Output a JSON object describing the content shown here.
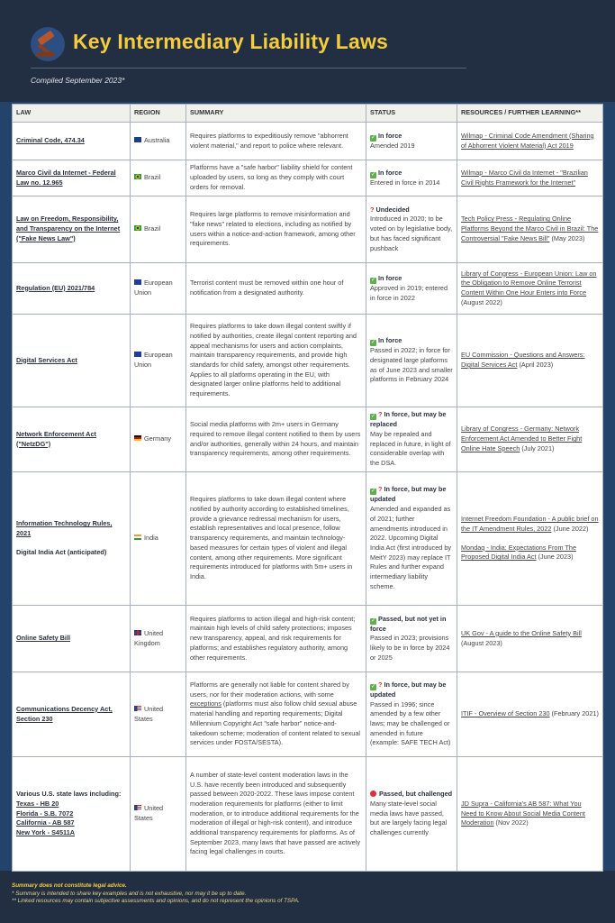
{
  "header": {
    "logo_icon": "gavel-icon",
    "title": "Key Intermediary Liability Laws",
    "subtitle": "Compiled September 2023*"
  },
  "colors": {
    "accent": "#f4cc3d",
    "background": "#222e41",
    "band": "#23436b"
  },
  "table": {
    "columns": [
      "LAW",
      "REGION",
      "SUMMARY",
      "STATUS",
      "RESOURCES / FURTHER LEARNING**"
    ],
    "rows": [
      {
        "law": [
          {
            "text": "Criminal Code, 474.34",
            "link": true
          }
        ],
        "region": {
          "flag": "australia-flag",
          "name": "Australia"
        },
        "summary": [
          {
            "text": "Requires platforms to expeditiously remove \"abhorrent violent material,\" and report to police where relevant."
          }
        ],
        "status": {
          "icons": [
            "check"
          ],
          "label": "In force",
          "detail": "Amended 2019"
        },
        "resources": [
          {
            "link": "Wilmap - Criminal Code Amendment (Sharing of Abhorrent Violent Material) Act 2019",
            "suffix": ""
          }
        ]
      },
      {
        "law": [
          {
            "text": "Marco Civil da Internet - Federal Law no. 12.965",
            "link": true
          }
        ],
        "region": {
          "flag": "brazil-flag",
          "name": "Brazil"
        },
        "summary": [
          {
            "text": "Platforms have a \"safe harbor\" liability shield for content uploaded by users, so long as they comply with court orders for removal."
          }
        ],
        "status": {
          "icons": [
            "check"
          ],
          "label": "In force",
          "detail": "Entered in force in 2014"
        },
        "resources": [
          {
            "link": "Wilmap - Marco Civil da Internet - \"Brazilian Civil Rights Framework for the Internet\"",
            "suffix": ""
          }
        ]
      },
      {
        "law": [
          {
            "text": "Law on Freedom, Responsibility, and Transparency on the Internet (\"Fake News Law\")",
            "link": true
          }
        ],
        "region": {
          "flag": "brazil-flag",
          "name": "Brazil"
        },
        "summary": [
          {
            "text": "Requires large platforms to remove misinformation and \"fake news\" related to elections, including as notified by users within a notice-and-action framework, among other requirements."
          }
        ],
        "status": {
          "icons": [
            "question"
          ],
          "label": "Undecided",
          "detail": "Introduced in 2020; to be voted on by legislative body, but has faced significant pushback"
        },
        "resources": [
          {
            "link": "Tech Policy Press - Regulating Online Platforms Beyond the Marco Civil in Brazil: The Controversial \"Fake News Bill\"",
            "suffix": " (May 2023)"
          }
        ]
      },
      {
        "law": [
          {
            "text": "Regulation (EU) 2021/784",
            "link": true
          }
        ],
        "region": {
          "flag": "eu-flag",
          "name": "European Union"
        },
        "summary": [
          {
            "text": "Terrorist content must be removed within one hour of notification from a designated authority."
          }
        ],
        "status": {
          "icons": [
            "check"
          ],
          "label": "In force",
          "detail": "Approved in 2019; entered in force in 2022"
        },
        "resources": [
          {
            "link": "Library of Congress - European Union: Law on the Obligation to Remove Online Terrorist Content Within One Hour Enters into Force",
            "suffix": " (August 2022)"
          }
        ]
      },
      {
        "law": [
          {
            "text": "Digital Services Act",
            "link": true
          }
        ],
        "region": {
          "flag": "eu-flag",
          "name": "European Union"
        },
        "summary": [
          {
            "text": "Requires platforms to take down illegal content swiftly if notified by authorities, create illegal content reporting and appeal mechanisms for users and action complaints, maintain transparency requirements, and provide high standards for child safety, amongst other requirements. Applies to all platforms operating in the EU, with designated larger online platforms held to additional requirements."
          }
        ],
        "status": {
          "icons": [
            "check"
          ],
          "label": "In force",
          "detail": "Passed in 2022; in force for designated large platforms as of June 2023 and smaller platforms in February 2024"
        },
        "resources": [
          {
            "link": "EU Commission - Questions and Answers: Digital Services Act",
            "suffix": " (April 2023)"
          }
        ]
      },
      {
        "law": [
          {
            "text": "Network Enforcement Act (\"NetzDG\")",
            "link": true
          }
        ],
        "region": {
          "flag": "germany-flag",
          "name": "Germany"
        },
        "summary": [
          {
            "text": "Social media platforms with 2m+ users in Germany required to remove illegal content notified to them by users and/or authorities, generally within 24 hours, and maintain transparency requirements, among other requirements."
          }
        ],
        "status": {
          "icons": [
            "check",
            "question"
          ],
          "label": "In force, but may be replaced",
          "detail": "May be repealed and replaced in future, in light of considerable overlap with the DSA."
        },
        "resources": [
          {
            "link": "Library of Congress - Germany: Network Enforcement Act Amended to Better Fight Online Hate Speech",
            "suffix": " (July 2021)"
          }
        ]
      },
      {
        "law": [
          {
            "text": "Information Technology Rules, 2021",
            "link": true
          },
          {
            "text": "Digital India Act (anticipated)",
            "link": false
          }
        ],
        "region": {
          "flag": "india-flag",
          "name": "India"
        },
        "summary": [
          {
            "text": "Requires platforms to take down illegal content where notified by authority according to established timelines, provide a grievance redressal mechanism for users, establish representatives and local presence, follow transparency requirements, and maintain technology-based measures for certain types of violent and illegal content, among other requirements. More significant requirements introduced for platforms with 5m+ users in India."
          }
        ],
        "status": {
          "icons": [
            "check",
            "question"
          ],
          "label": "In force, but may be updated",
          "detail": "Amended and expanded as of 2021; further amendments introduced in 2022. Upcoming Digital India Act (first introduced by MeitY 2023) may replace IT Rules and further expand intermediary liability scheme."
        },
        "resources": [
          {
            "link": "Internet Freedom Foundation - A public brief on the IT Amendment Rules, 2022",
            "suffix": " (June 2022)"
          },
          {
            "link": "Mondaq - India: Expectations From The Proposed Digital India Act",
            "suffix": " (June 2023)"
          }
        ]
      },
      {
        "law": [
          {
            "text": "Online Safety Bill",
            "link": true
          }
        ],
        "region": {
          "flag": "uk-flag",
          "name": "United Kingdom"
        },
        "summary": [
          {
            "text": "Requires platforms to action illegal and high-risk content; maintain high levels of child safety protections; imposes new transparency, appeal, and risk requirements for platforms; and establishes regulatory authority, among other requirements."
          }
        ],
        "status": {
          "icons": [
            "check"
          ],
          "label": "Passed, but not yet in force",
          "detail": "Passed in 2023; provisions likely to be in force by 2024 or 2025"
        },
        "resources": [
          {
            "link": "UK Gov - A guide to the Online Safety Bill",
            "suffix": " (August 2023)"
          }
        ]
      },
      {
        "law": [
          {
            "text": "Communications Decency Act, Section 230",
            "link": true
          }
        ],
        "region": {
          "flag": "us-flag",
          "name": "United States"
        },
        "summary": [
          {
            "text": "Platforms are generally not liable for content shared by users, nor for their moderation actions, with some "
          },
          {
            "text": "exceptions",
            "link": true
          },
          {
            "text": " (platforms must also follow child sexual abuse material handling and reporting requirements; Digital Millennium Copyright Act \"safe harbor\" notice-and-takedown scheme; moderation of content related to sexual services under FOSTA/SESTA)."
          }
        ],
        "status": {
          "icons": [
            "check",
            "question"
          ],
          "label": "In force, but may be updated",
          "detail": "Passed in 1996; since amended by a few other laws; may be challenged or amended in future (example: SAFE TECH Act)"
        },
        "resources": [
          {
            "link": "ITIF - Overview of Section 230",
            "suffix": " (February 2021)"
          }
        ]
      },
      {
        "law": [
          {
            "text": "Various U.S. state laws including:",
            "link": false
          },
          {
            "text": "Texas - HB 20",
            "link": true
          },
          {
            "text": "Florida - S.B. 7072",
            "link": true
          },
          {
            "text": "California - AB 587",
            "link": true
          },
          {
            "text": "New York - S4511A",
            "link": true
          }
        ],
        "region": {
          "flag": "us-flag",
          "name": "United States"
        },
        "summary": [
          {
            "text": "A number of state-level content moderation laws in the U.S. have recently been introduced and subsequently passed between 2020-2022. These laws impose content moderation requirements for platforms (either to limit moderation, or to introduce additional requirements for the moderation of illegal or high-risk content), and introduce additional transparency requirements for platforms. As of September 2023, many laws that have passed are actively facing legal challenges in courts."
          }
        ],
        "status": {
          "icons": [
            "red-dot"
          ],
          "label": "Passed, but challenged",
          "detail": "Many state-level social media laws have passed, but are largely facing legal challenges currently"
        },
        "resources": [
          {
            "link": "JD Supra - California's AB 587: What You Need to Know About Social Media Content Moderation",
            "suffix": " (Nov 2022)"
          }
        ]
      }
    ]
  },
  "footer": {
    "disclaimer": "Summary does not constitute legal advice.",
    "note1": "* Summary is intended to share key examples and is not exhaustive, nor may it be up to date.",
    "note2": "** Linked resources may contain subjective assessments and opinions, and do not represent the opinions of TSPA."
  }
}
